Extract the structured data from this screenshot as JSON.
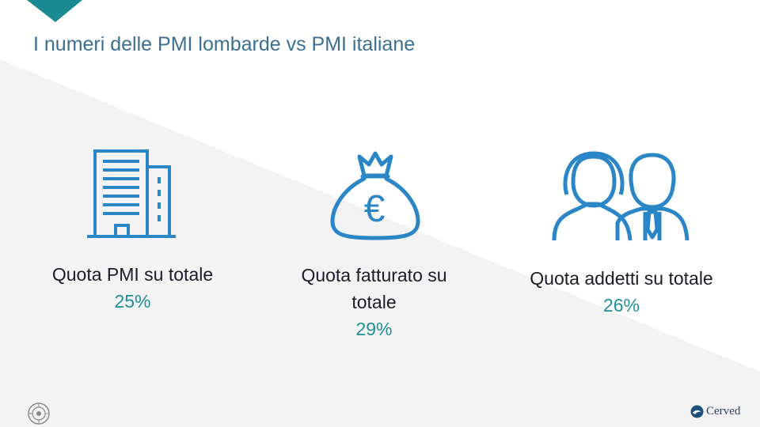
{
  "slide": {
    "title": "I numeri delle PMI lombarde vs PMI italiane",
    "kpis": [
      {
        "label_lines": [
          "Quota PMI su totale"
        ],
        "value": "25%",
        "icon": "office-building-icon"
      },
      {
        "label_lines": [
          "Quota fatturato su",
          "totale"
        ],
        "value": "29%",
        "icon": "euro-money-bag-icon"
      },
      {
        "label_lines": [
          "Quota addetti su totale"
        ],
        "value": "26%",
        "icon": "employees-icon"
      }
    ]
  },
  "footer": {
    "seal_icon": "institutional-seal-icon",
    "brand": "Cerved",
    "brand_icon": "cerved-logo-icon"
  },
  "colors": {
    "title": "#3d6f8f",
    "icon": "#2a86c7",
    "value": "#1e8f94",
    "label": "#1b1b2a",
    "corner": "#1a8a93"
  }
}
